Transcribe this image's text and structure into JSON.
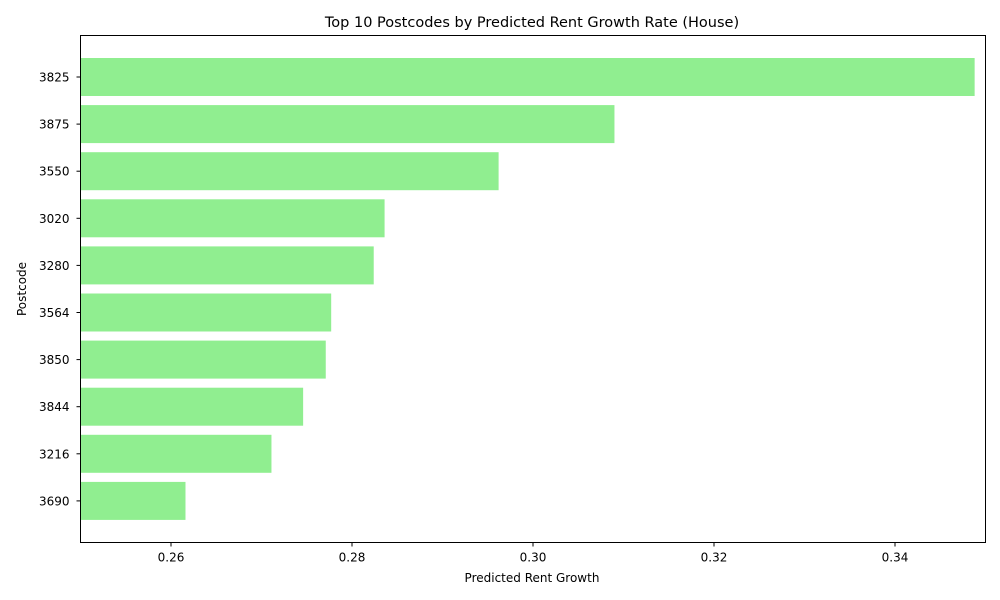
{
  "chart_data": {
    "type": "bar",
    "orientation": "horizontal",
    "title": "Top 10 Postcodes by Predicted Rent Growth Rate (House)",
    "xlabel": "Predicted Rent Growth",
    "ylabel": "Postcode",
    "categories": [
      "3825",
      "3875",
      "3550",
      "3020",
      "3280",
      "3564",
      "3850",
      "3844",
      "3216",
      "3690"
    ],
    "values": [
      0.3488,
      0.309,
      0.2962,
      0.2836,
      0.2824,
      0.2777,
      0.2771,
      0.2746,
      0.2711,
      0.2616
    ],
    "xlim": [
      0.25,
      0.35
    ],
    "xticks": [
      "0.26",
      "0.28",
      "0.30",
      "0.32",
      "0.34"
    ],
    "xtick_values": [
      0.26,
      0.28,
      0.3,
      0.32,
      0.34
    ],
    "bar_color": "#90ee90",
    "grid": false,
    "legend": "none"
  }
}
